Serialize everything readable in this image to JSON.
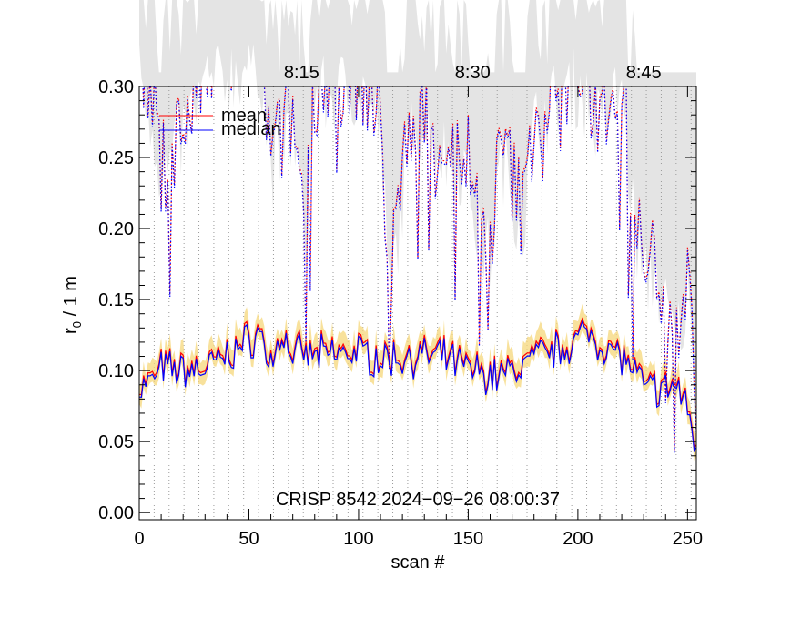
{
  "chart_data": {
    "type": "line",
    "title": "",
    "xlabel": "scan #",
    "ylabel": "r",
    "ylabel_sub": "0",
    "ylabel_suffix": " / 1 m",
    "xlim": [
      0,
      254
    ],
    "ylim": [
      -0.005,
      0.3
    ],
    "grid": false,
    "legend_position": "top-left",
    "x_ticks": [
      0,
      50,
      100,
      150,
      200,
      250
    ],
    "y_ticks": [
      0.0,
      0.05,
      0.1,
      0.15,
      0.2,
      0.25,
      0.3
    ],
    "y_tick_labels": [
      "0.00",
      "0.05",
      "0.10",
      "0.15",
      "0.20",
      "0.25",
      "0.30"
    ],
    "top_ticks": [
      {
        "label": "8:15",
        "x": 74
      },
      {
        "label": "8:30",
        "x": 152
      },
      {
        "label": "8:45",
        "x": 230
      }
    ],
    "annotation": "CRISP 8542 2024−09−26 08:00:37",
    "series": [
      {
        "name": "mean",
        "color": "#ff0000",
        "anchors": [
          [
            0,
            0.09
          ],
          [
            5,
            0.093
          ],
          [
            10,
            0.103
          ],
          [
            20,
            0.102
          ],
          [
            30,
            0.103
          ],
          [
            40,
            0.112
          ],
          [
            50,
            0.123
          ],
          [
            55,
            0.128
          ],
          [
            60,
            0.107
          ],
          [
            65,
            0.128
          ],
          [
            70,
            0.113
          ],
          [
            80,
            0.112
          ],
          [
            90,
            0.114
          ],
          [
            100,
            0.115
          ],
          [
            110,
            0.11
          ],
          [
            120,
            0.111
          ],
          [
            130,
            0.112
          ],
          [
            140,
            0.11
          ],
          [
            150,
            0.103
          ],
          [
            155,
            0.101
          ],
          [
            160,
            0.098
          ],
          [
            170,
            0.101
          ],
          [
            180,
            0.111
          ],
          [
            190,
            0.116
          ],
          [
            200,
            0.124
          ],
          [
            205,
            0.129
          ],
          [
            210,
            0.121
          ],
          [
            220,
            0.112
          ],
          [
            225,
            0.102
          ],
          [
            230,
            0.09
          ],
          [
            240,
            0.088
          ],
          [
            245,
            0.092
          ],
          [
            250,
            0.074
          ],
          [
            254,
            0.05
          ]
        ]
      },
      {
        "name": "median",
        "color": "#0000ff",
        "anchors": [
          [
            0,
            0.088
          ],
          [
            5,
            0.091
          ],
          [
            10,
            0.101
          ],
          [
            20,
            0.1
          ],
          [
            30,
            0.101
          ],
          [
            40,
            0.11
          ],
          [
            50,
            0.121
          ],
          [
            55,
            0.126
          ],
          [
            60,
            0.105
          ],
          [
            65,
            0.126
          ],
          [
            70,
            0.111
          ],
          [
            80,
            0.11
          ],
          [
            90,
            0.112
          ],
          [
            100,
            0.113
          ],
          [
            110,
            0.108
          ],
          [
            120,
            0.109
          ],
          [
            130,
            0.11
          ],
          [
            140,
            0.108
          ],
          [
            150,
            0.101
          ],
          [
            155,
            0.099
          ],
          [
            160,
            0.096
          ],
          [
            170,
            0.099
          ],
          [
            180,
            0.109
          ],
          [
            190,
            0.114
          ],
          [
            200,
            0.122
          ],
          [
            205,
            0.127
          ],
          [
            210,
            0.119
          ],
          [
            220,
            0.11
          ],
          [
            225,
            0.1
          ],
          [
            230,
            0.088
          ],
          [
            240,
            0.086
          ],
          [
            245,
            0.09
          ],
          [
            250,
            0.072
          ],
          [
            254,
            0.048
          ]
        ]
      }
    ],
    "upper_series_anchors": [
      [
        0,
        0.33
      ],
      [
        8,
        0.27
      ],
      [
        10,
        0.24
      ],
      [
        30,
        0.31
      ],
      [
        55,
        0.33
      ],
      [
        60,
        0.25
      ],
      [
        70,
        0.28
      ],
      [
        76,
        0.2
      ],
      [
        80,
        0.3
      ],
      [
        100,
        0.31
      ],
      [
        110,
        0.28
      ],
      [
        114,
        0.16
      ],
      [
        125,
        0.29
      ],
      [
        140,
        0.26
      ],
      [
        150,
        0.25
      ],
      [
        155,
        0.2
      ],
      [
        160,
        0.19
      ],
      [
        165,
        0.26
      ],
      [
        175,
        0.21
      ],
      [
        180,
        0.28
      ],
      [
        190,
        0.3
      ],
      [
        200,
        0.31
      ],
      [
        210,
        0.28
      ],
      [
        220,
        0.31
      ],
      [
        225,
        0.22
      ],
      [
        230,
        0.17
      ],
      [
        235,
        0.18
      ],
      [
        240,
        0.15
      ],
      [
        245,
        0.13
      ],
      [
        250,
        0.16
      ],
      [
        254,
        0.09
      ]
    ],
    "band_color": "#f5d77a",
    "upper_band_color": "#e4e4e4"
  }
}
